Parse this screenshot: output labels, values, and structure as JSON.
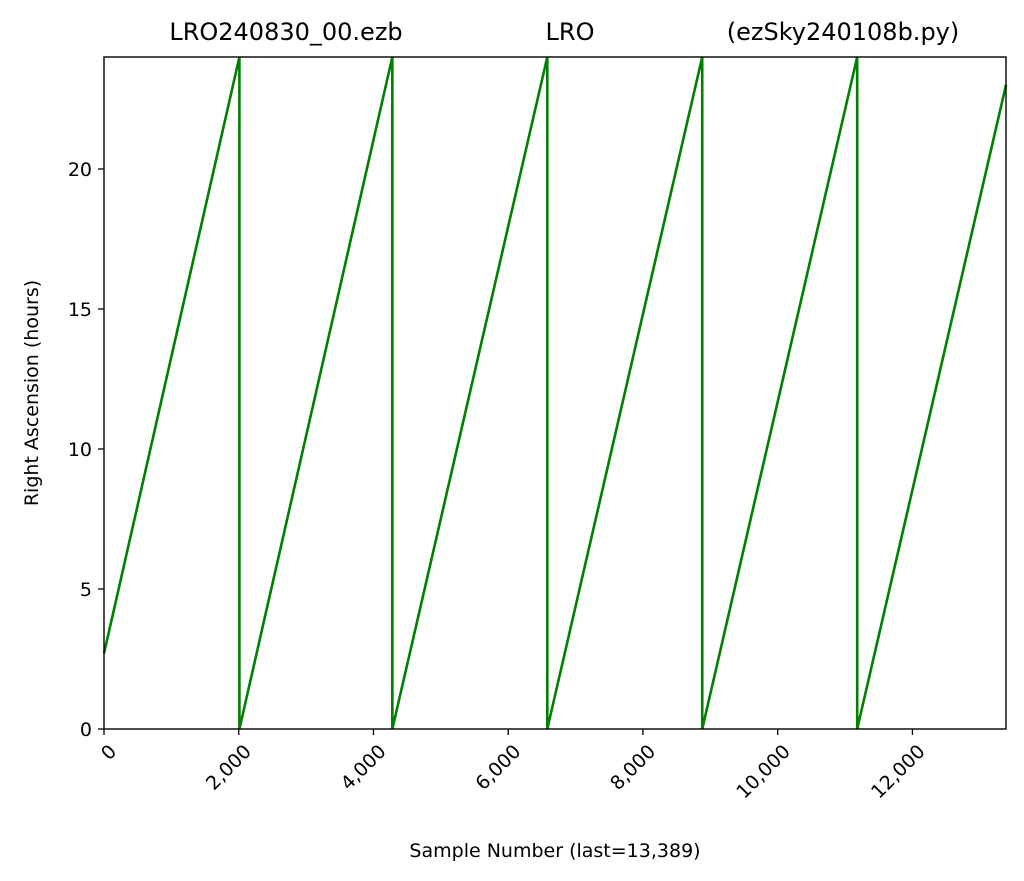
{
  "chart_data": {
    "type": "line",
    "title_parts": [
      "LRO240830_00.ezb",
      "LRO",
      "(ezSky240108b.py)"
    ],
    "xlabel": "Sample Number (last=13,389)",
    "ylabel": "Right Ascension (hours)",
    "xlim": [
      0,
      13389
    ],
    "ylim": [
      0,
      24
    ],
    "x_ticks": [
      0,
      2000,
      4000,
      6000,
      8000,
      10000,
      12000
    ],
    "x_tick_labels": [
      "0",
      "2,000",
      "4,000",
      "6,000",
      "8,000",
      "10,000",
      "12,000"
    ],
    "y_ticks": [
      0,
      5,
      10,
      15,
      20
    ],
    "y_tick_labels": [
      "0",
      "5",
      "10",
      "15",
      "20"
    ],
    "grid": false,
    "legend": false,
    "series": [
      {
        "color": "#008000",
        "x": [
          0,
          2010,
          2010,
          4280,
          4280,
          6580,
          6580,
          8880,
          8880,
          11180,
          11180,
          13389
        ],
        "y": [
          2.7,
          24.0,
          0.0,
          24.0,
          0.0,
          24.0,
          0.0,
          24.0,
          0.0,
          24.0,
          0.0,
          23.0
        ]
      }
    ]
  }
}
